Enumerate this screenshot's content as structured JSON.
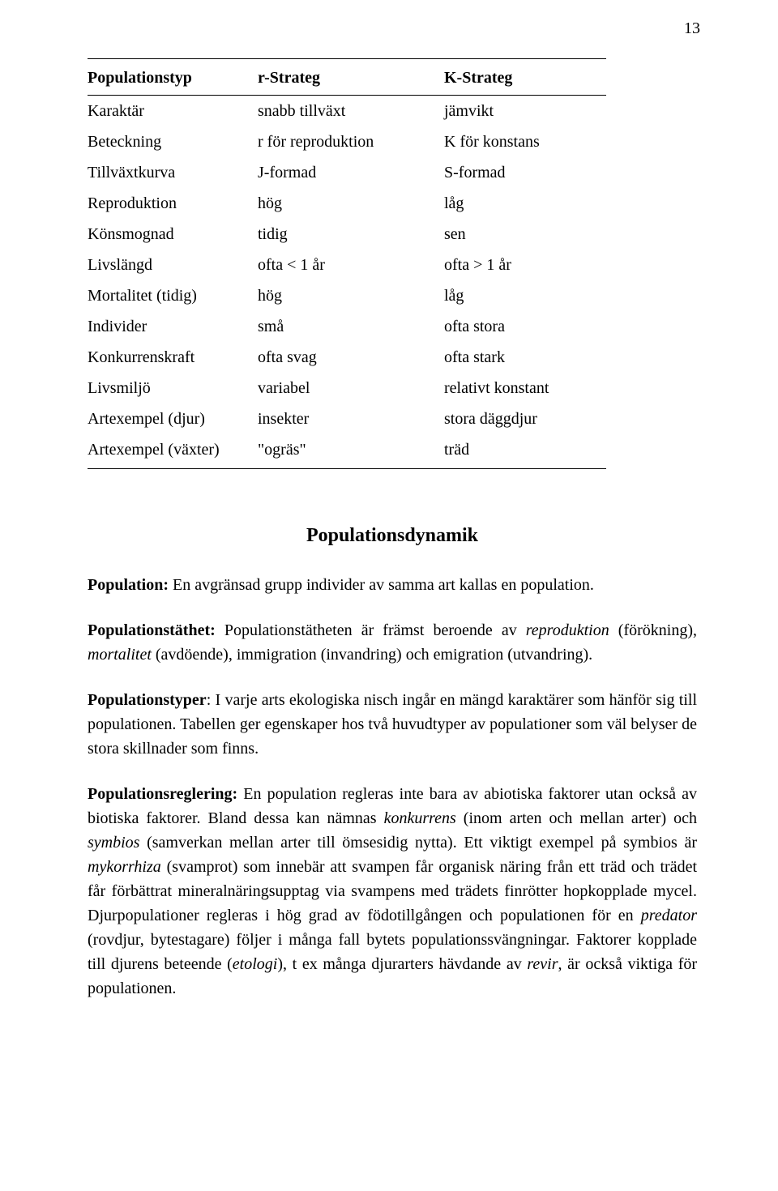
{
  "page_number": "13",
  "table": {
    "headers": [
      "Populationstyp",
      "r-Strateg",
      "K-Strateg"
    ],
    "rows": [
      [
        "Karaktär",
        "snabb tillväxt",
        "jämvikt"
      ],
      [
        "Beteckning",
        "r för reproduktion",
        "K för konstans"
      ],
      [
        "Tillväxtkurva",
        "J-formad",
        "S-formad"
      ],
      [
        "Reproduktion",
        "hög",
        "låg"
      ],
      [
        "Könsmognad",
        "tidig",
        "sen"
      ],
      [
        "Livslängd",
        "ofta  < 1 år",
        "ofta  > 1 år"
      ],
      [
        "Mortalitet (tidig)",
        "hög",
        "låg"
      ],
      [
        "Individer",
        "små",
        "ofta stora"
      ],
      [
        "Konkurrenskraft",
        "ofta svag",
        "ofta stark"
      ],
      [
        "Livsmiljö",
        "variabel",
        "relativt konstant"
      ],
      [
        "Artexempel (djur)",
        "insekter",
        "stora däggdjur"
      ],
      [
        "Artexempel (växter)",
        "\"ogräs\"",
        "träd"
      ]
    ]
  },
  "section_title": "Populationsdynamik",
  "p1": {
    "term": "Population:",
    "text": " En avgränsad grupp individer av samma art kallas en population."
  },
  "p2": {
    "term": "Populationstäthet:",
    "pre": " Populationstätheten är främst beroende av ",
    "i1": "reproduktion",
    "mid1": " (förökning), ",
    "i2": "mortalitet",
    "mid2": " (avdöende), immigration (invandring) och emigration (utvandring)."
  },
  "p3": {
    "term": "Populationstyper",
    "text": ": I varje arts ekologiska nisch ingår en mängd karaktärer som hänför sig till populationen. Tabellen ger egenskaper hos två huvudtyper av populationer som väl belyser de stora skillnader som finns."
  },
  "p4": {
    "term": "Populationsreglering:",
    "t1": " En population regleras inte bara av abiotiska faktorer utan också  av biotiska faktorer. Bland dessa kan nämnas ",
    "i1": "konkurrens",
    "t2": " (inom arten och mellan arter) och ",
    "i2": "symbios",
    "t3": " (samverkan mellan arter till ömsesidig nytta). Ett viktigt exempel på symbios är ",
    "i3": "mykorrhiza",
    "t4": " (svamprot) som innebär att svampen får organisk näring från ett träd och trädet får förbättrat mineralnäringsupptag via svampens med trädets finrötter hopkopplade mycel. Djurpopulationer regleras i hög grad av födotillgången och populationen för en ",
    "i4": "predator",
    "t5": " (rovdjur, bytestagare) följer i många fall bytets populationssvängningar. Faktorer kopplade till djurens beteende (",
    "i5": "etologi",
    "t6": "), t ex många djurarters hävdande av ",
    "i6": "revir",
    "t7": ", är också viktiga för populationen."
  }
}
